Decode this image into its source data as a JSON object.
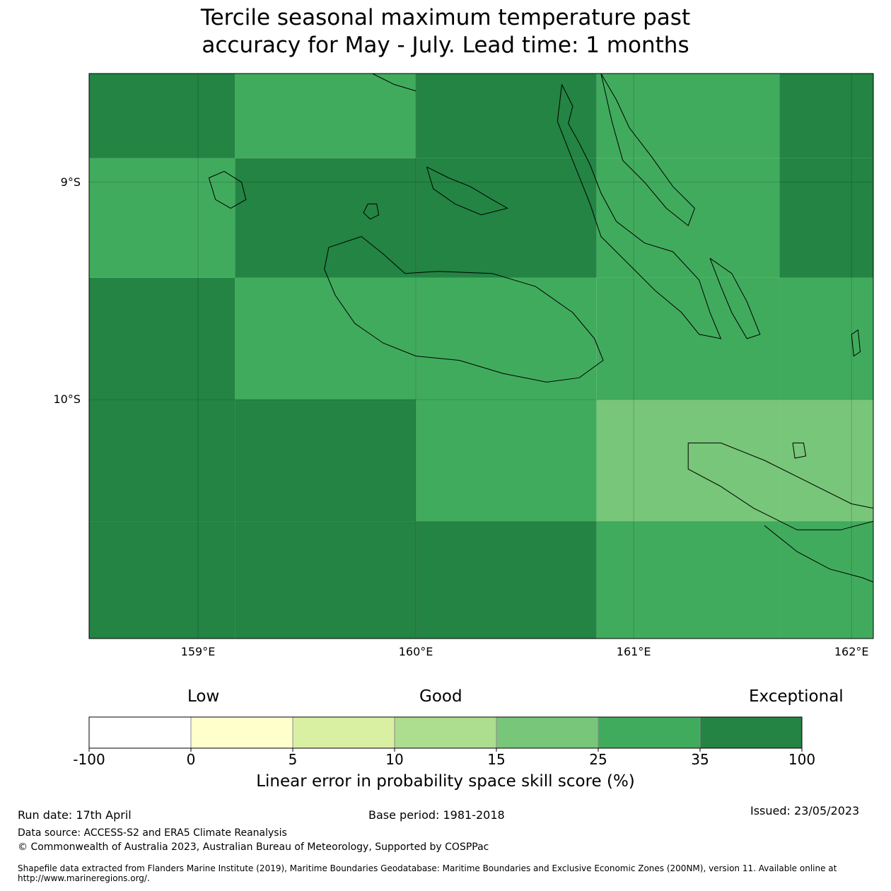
{
  "title_line1": "Tercile seasonal maximum temperature past",
  "title_line2": "accuracy for May - July. Lead time: 1 months",
  "map": {
    "lon_range": [
      158.5,
      162.1
    ],
    "lat_range": [
      -11.1,
      -8.5
    ],
    "lat_ticks": [
      {
        "value": -9,
        "label": "9°S"
      },
      {
        "value": -10,
        "label": "10°S"
      }
    ],
    "lon_ticks": [
      {
        "value": 159,
        "label": "159°E"
      },
      {
        "value": 160,
        "label": "160°E"
      },
      {
        "value": 161,
        "label": "161°E"
      },
      {
        "value": 162,
        "label": "162°E"
      }
    ],
    "cells": [
      {
        "lon": [
          158.5,
          159.17
        ],
        "lat": [
          -8.89,
          -8.5
        ],
        "color": "#238443"
      },
      {
        "lon": [
          159.17,
          160.0
        ],
        "lat": [
          -8.89,
          -8.5
        ],
        "color": "#41ab5d"
      },
      {
        "lon": [
          160.0,
          160.83
        ],
        "lat": [
          -8.89,
          -8.5
        ],
        "color": "#238443"
      },
      {
        "lon": [
          160.83,
          161.67
        ],
        "lat": [
          -8.89,
          -8.5
        ],
        "color": "#41ab5d"
      },
      {
        "lon": [
          161.67,
          162.1
        ],
        "lat": [
          -8.89,
          -8.5
        ],
        "color": "#238443"
      },
      {
        "lon": [
          158.5,
          159.17
        ],
        "lat": [
          -9.44,
          -8.89
        ],
        "color": "#41ab5d"
      },
      {
        "lon": [
          159.17,
          160.0
        ],
        "lat": [
          -9.44,
          -8.89
        ],
        "color": "#238443"
      },
      {
        "lon": [
          160.0,
          160.83
        ],
        "lat": [
          -9.44,
          -8.89
        ],
        "color": "#238443"
      },
      {
        "lon": [
          160.83,
          161.67
        ],
        "lat": [
          -9.44,
          -8.89
        ],
        "color": "#41ab5d"
      },
      {
        "lon": [
          161.67,
          162.1
        ],
        "lat": [
          -9.44,
          -8.89
        ],
        "color": "#238443"
      },
      {
        "lon": [
          158.5,
          159.17
        ],
        "lat": [
          -10.0,
          -9.44
        ],
        "color": "#238443"
      },
      {
        "lon": [
          159.17,
          160.0
        ],
        "lat": [
          -10.0,
          -9.44
        ],
        "color": "#41ab5d"
      },
      {
        "lon": [
          160.0,
          160.83
        ],
        "lat": [
          -10.0,
          -9.44
        ],
        "color": "#41ab5d"
      },
      {
        "lon": [
          160.83,
          161.67
        ],
        "lat": [
          -10.0,
          -9.44
        ],
        "color": "#41ab5d"
      },
      {
        "lon": [
          161.67,
          162.1
        ],
        "lat": [
          -10.0,
          -9.44
        ],
        "color": "#41ab5d"
      },
      {
        "lon": [
          158.5,
          159.17
        ],
        "lat": [
          -10.56,
          -10.0
        ],
        "color": "#238443"
      },
      {
        "lon": [
          159.17,
          160.0
        ],
        "lat": [
          -10.56,
          -10.0
        ],
        "color": "#238443"
      },
      {
        "lon": [
          160.0,
          160.83
        ],
        "lat": [
          -10.56,
          -10.0
        ],
        "color": "#41ab5d"
      },
      {
        "lon": [
          160.83,
          161.67
        ],
        "lat": [
          -10.56,
          -10.0
        ],
        "color": "#78c679"
      },
      {
        "lon": [
          161.67,
          162.1
        ],
        "lat": [
          -10.56,
          -10.0
        ],
        "color": "#78c679"
      },
      {
        "lon": [
          158.5,
          159.17
        ],
        "lat": [
          -11.1,
          -10.56
        ],
        "color": "#238443"
      },
      {
        "lon": [
          159.17,
          160.0
        ],
        "lat": [
          -11.1,
          -10.56
        ],
        "color": "#238443"
      },
      {
        "lon": [
          160.0,
          160.83
        ],
        "lat": [
          -11.1,
          -10.56
        ],
        "color": "#238443"
      },
      {
        "lon": [
          160.83,
          161.67
        ],
        "lat": [
          -11.1,
          -10.56
        ],
        "color": "#41ab5d"
      },
      {
        "lon": [
          161.67,
          162.1
        ],
        "lat": [
          -11.1,
          -10.56
        ],
        "color": "#41ab5d"
      }
    ],
    "coastlines": [
      {
        "name": "guadalcanal",
        "points": [
          [
            159.6,
            -9.3
          ],
          [
            159.75,
            -9.25
          ],
          [
            159.85,
            -9.33
          ],
          [
            159.95,
            -9.42
          ],
          [
            160.1,
            -9.41
          ],
          [
            160.35,
            -9.42
          ],
          [
            160.55,
            -9.48
          ],
          [
            160.72,
            -9.6
          ],
          [
            160.82,
            -9.72
          ],
          [
            160.86,
            -9.82
          ],
          [
            160.75,
            -9.9
          ],
          [
            160.6,
            -9.92
          ],
          [
            160.4,
            -9.88
          ],
          [
            160.2,
            -9.82
          ],
          [
            160.0,
            -9.8
          ],
          [
            159.85,
            -9.74
          ],
          [
            159.72,
            -9.65
          ],
          [
            159.63,
            -9.52
          ],
          [
            159.58,
            -9.4
          ],
          [
            159.6,
            -9.3
          ]
        ]
      },
      {
        "name": "malaita",
        "points": [
          [
            160.67,
            -8.55
          ],
          [
            160.72,
            -8.65
          ],
          [
            160.7,
            -8.73
          ],
          [
            160.75,
            -8.82
          ],
          [
            160.8,
            -8.92
          ],
          [
            160.85,
            -9.05
          ],
          [
            160.92,
            -9.18
          ],
          [
            161.05,
            -9.28
          ],
          [
            161.18,
            -9.32
          ],
          [
            161.3,
            -9.45
          ],
          [
            161.35,
            -9.6
          ],
          [
            161.4,
            -9.72
          ],
          [
            161.3,
            -9.7
          ],
          [
            161.22,
            -9.6
          ],
          [
            161.1,
            -9.5
          ],
          [
            160.98,
            -9.38
          ],
          [
            160.85,
            -9.25
          ],
          [
            160.8,
            -9.1
          ],
          [
            160.72,
            -8.9
          ],
          [
            160.65,
            -8.72
          ],
          [
            160.67,
            -8.55
          ]
        ]
      },
      {
        "name": "malaita-north",
        "points": [
          [
            160.85,
            -8.5
          ],
          [
            160.92,
            -8.62
          ],
          [
            160.98,
            -8.75
          ],
          [
            161.08,
            -8.88
          ],
          [
            161.18,
            -9.02
          ],
          [
            161.28,
            -9.12
          ],
          [
            161.25,
            -9.2
          ],
          [
            161.15,
            -9.12
          ],
          [
            161.05,
            -9.0
          ],
          [
            160.95,
            -8.9
          ],
          [
            160.9,
            -8.72
          ],
          [
            160.85,
            -8.5
          ]
        ]
      },
      {
        "name": "small-malaita",
        "points": [
          [
            161.35,
            -9.35
          ],
          [
            161.45,
            -9.42
          ],
          [
            161.52,
            -9.55
          ],
          [
            161.58,
            -9.7
          ],
          [
            161.52,
            -9.72
          ],
          [
            161.45,
            -9.6
          ],
          [
            161.4,
            -9.48
          ],
          [
            161.35,
            -9.35
          ]
        ]
      },
      {
        "name": "florida-islands",
        "points": [
          [
            160.05,
            -8.93
          ],
          [
            160.15,
            -8.98
          ],
          [
            160.25,
            -9.02
          ],
          [
            160.35,
            -9.08
          ],
          [
            160.42,
            -9.12
          ],
          [
            160.3,
            -9.15
          ],
          [
            160.18,
            -9.1
          ],
          [
            160.08,
            -9.03
          ],
          [
            160.05,
            -8.93
          ]
        ]
      },
      {
        "name": "russell-islands",
        "points": [
          [
            159.05,
            -8.98
          ],
          [
            159.12,
            -8.95
          ],
          [
            159.2,
            -9.0
          ],
          [
            159.22,
            -9.08
          ],
          [
            159.15,
            -9.12
          ],
          [
            159.08,
            -9.08
          ],
          [
            159.05,
            -8.98
          ]
        ]
      },
      {
        "name": "savo",
        "points": [
          [
            159.78,
            -9.1
          ],
          [
            159.82,
            -9.1
          ],
          [
            159.83,
            -9.15
          ],
          [
            159.79,
            -9.17
          ],
          [
            159.76,
            -9.14
          ],
          [
            159.78,
            -9.1
          ]
        ]
      },
      {
        "name": "makira",
        "points": [
          [
            161.25,
            -10.2
          ],
          [
            161.4,
            -10.2
          ],
          [
            161.6,
            -10.28
          ],
          [
            161.8,
            -10.38
          ],
          [
            162.0,
            -10.48
          ],
          [
            162.1,
            -10.5
          ],
          [
            162.1,
            -10.56
          ],
          [
            161.95,
            -10.6
          ],
          [
            161.75,
            -10.6
          ],
          [
            161.55,
            -10.5
          ],
          [
            161.4,
            -10.4
          ],
          [
            161.25,
            -10.32
          ],
          [
            161.25,
            -10.2
          ]
        ]
      },
      {
        "name": "makira-south",
        "points": [
          [
            161.6,
            -10.58
          ],
          [
            161.75,
            -10.7
          ],
          [
            161.9,
            -10.78
          ],
          [
            162.05,
            -10.82
          ],
          [
            162.1,
            -10.84
          ]
        ]
      },
      {
        "name": "ulawa",
        "points": [
          [
            161.73,
            -10.2
          ],
          [
            161.78,
            -10.2
          ],
          [
            161.79,
            -10.26
          ],
          [
            161.74,
            -10.27
          ],
          [
            161.73,
            -10.2
          ]
        ]
      },
      {
        "name": "rennell-north",
        "points": [
          [
            159.8,
            -8.5
          ],
          [
            159.9,
            -8.55
          ],
          [
            160.0,
            -8.58
          ]
        ]
      },
      {
        "name": "owa",
        "points": [
          [
            162.0,
            -9.7
          ],
          [
            162.03,
            -9.68
          ],
          [
            162.04,
            -9.78
          ],
          [
            162.01,
            -9.8
          ],
          [
            162.0,
            -9.7
          ]
        ]
      }
    ]
  },
  "colorbar": {
    "categories": [
      "Low",
      "Good",
      "Exceptional"
    ],
    "colors": [
      "#ffffff",
      "#ffffcc",
      "#d9f0a3",
      "#addd8e",
      "#78c679",
      "#41ab5d",
      "#238443"
    ],
    "ticks": [
      "-100",
      "0",
      "5",
      "10",
      "15",
      "25",
      "35",
      "100"
    ],
    "title": "Linear error in probability space skill score (%)"
  },
  "footer": {
    "run_date": "Run date: 17th April",
    "base_period": "Base period: 1981-2018",
    "issued": "Issued: 23/05/2023",
    "data_source": "Data source: ACCESS-S2 and ERA5 Climate Reanalysis",
    "copyright": "© Commonwealth of Australia 2023, Australian Bureau of Meteorology, Supported by COSPPac",
    "shapefile": "Shapefile data extracted from Flanders Marine Institute (2019), Maritime Boundaries Geodatabase: Maritime Boundaries and Exclusive Economic Zones (200NM), version 11. Available online at http://www.marineregions.org/."
  }
}
